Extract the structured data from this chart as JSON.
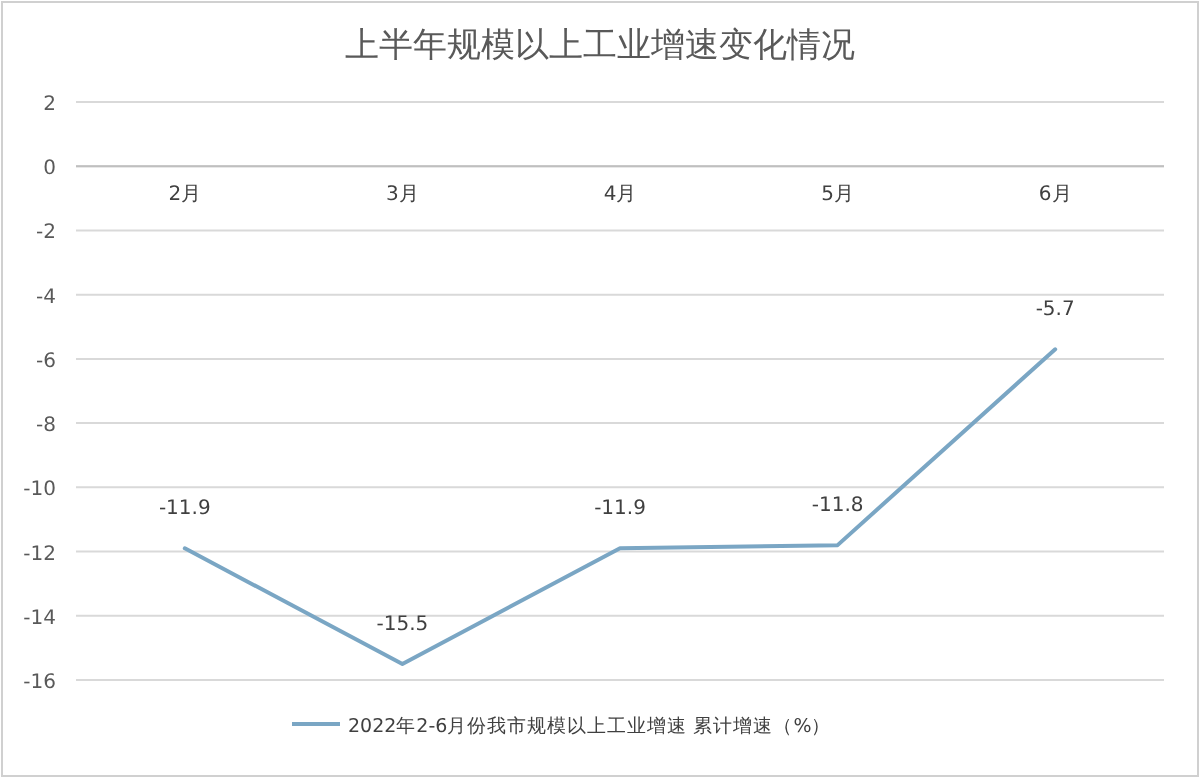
{
  "chart_data": {
    "type": "line",
    "title": "上半年规模以上工业增速变化情况",
    "categories": [
      "2月",
      "3月",
      "4月",
      "5月",
      "6月"
    ],
    "series": [
      {
        "name": "2022年2-6月份我市规模以上工业增速 累计增速（%）",
        "color": "#7aa6c4",
        "values": [
          -11.9,
          -15.5,
          -11.9,
          -11.8,
          -5.7
        ]
      }
    ],
    "ylim": [
      -16,
      2
    ],
    "yticks": [
      2,
      0,
      -2,
      -4,
      -6,
      -8,
      -10,
      -12,
      -14,
      -16
    ],
    "grid": "y",
    "legend": "bottom",
    "data_labels": true
  }
}
